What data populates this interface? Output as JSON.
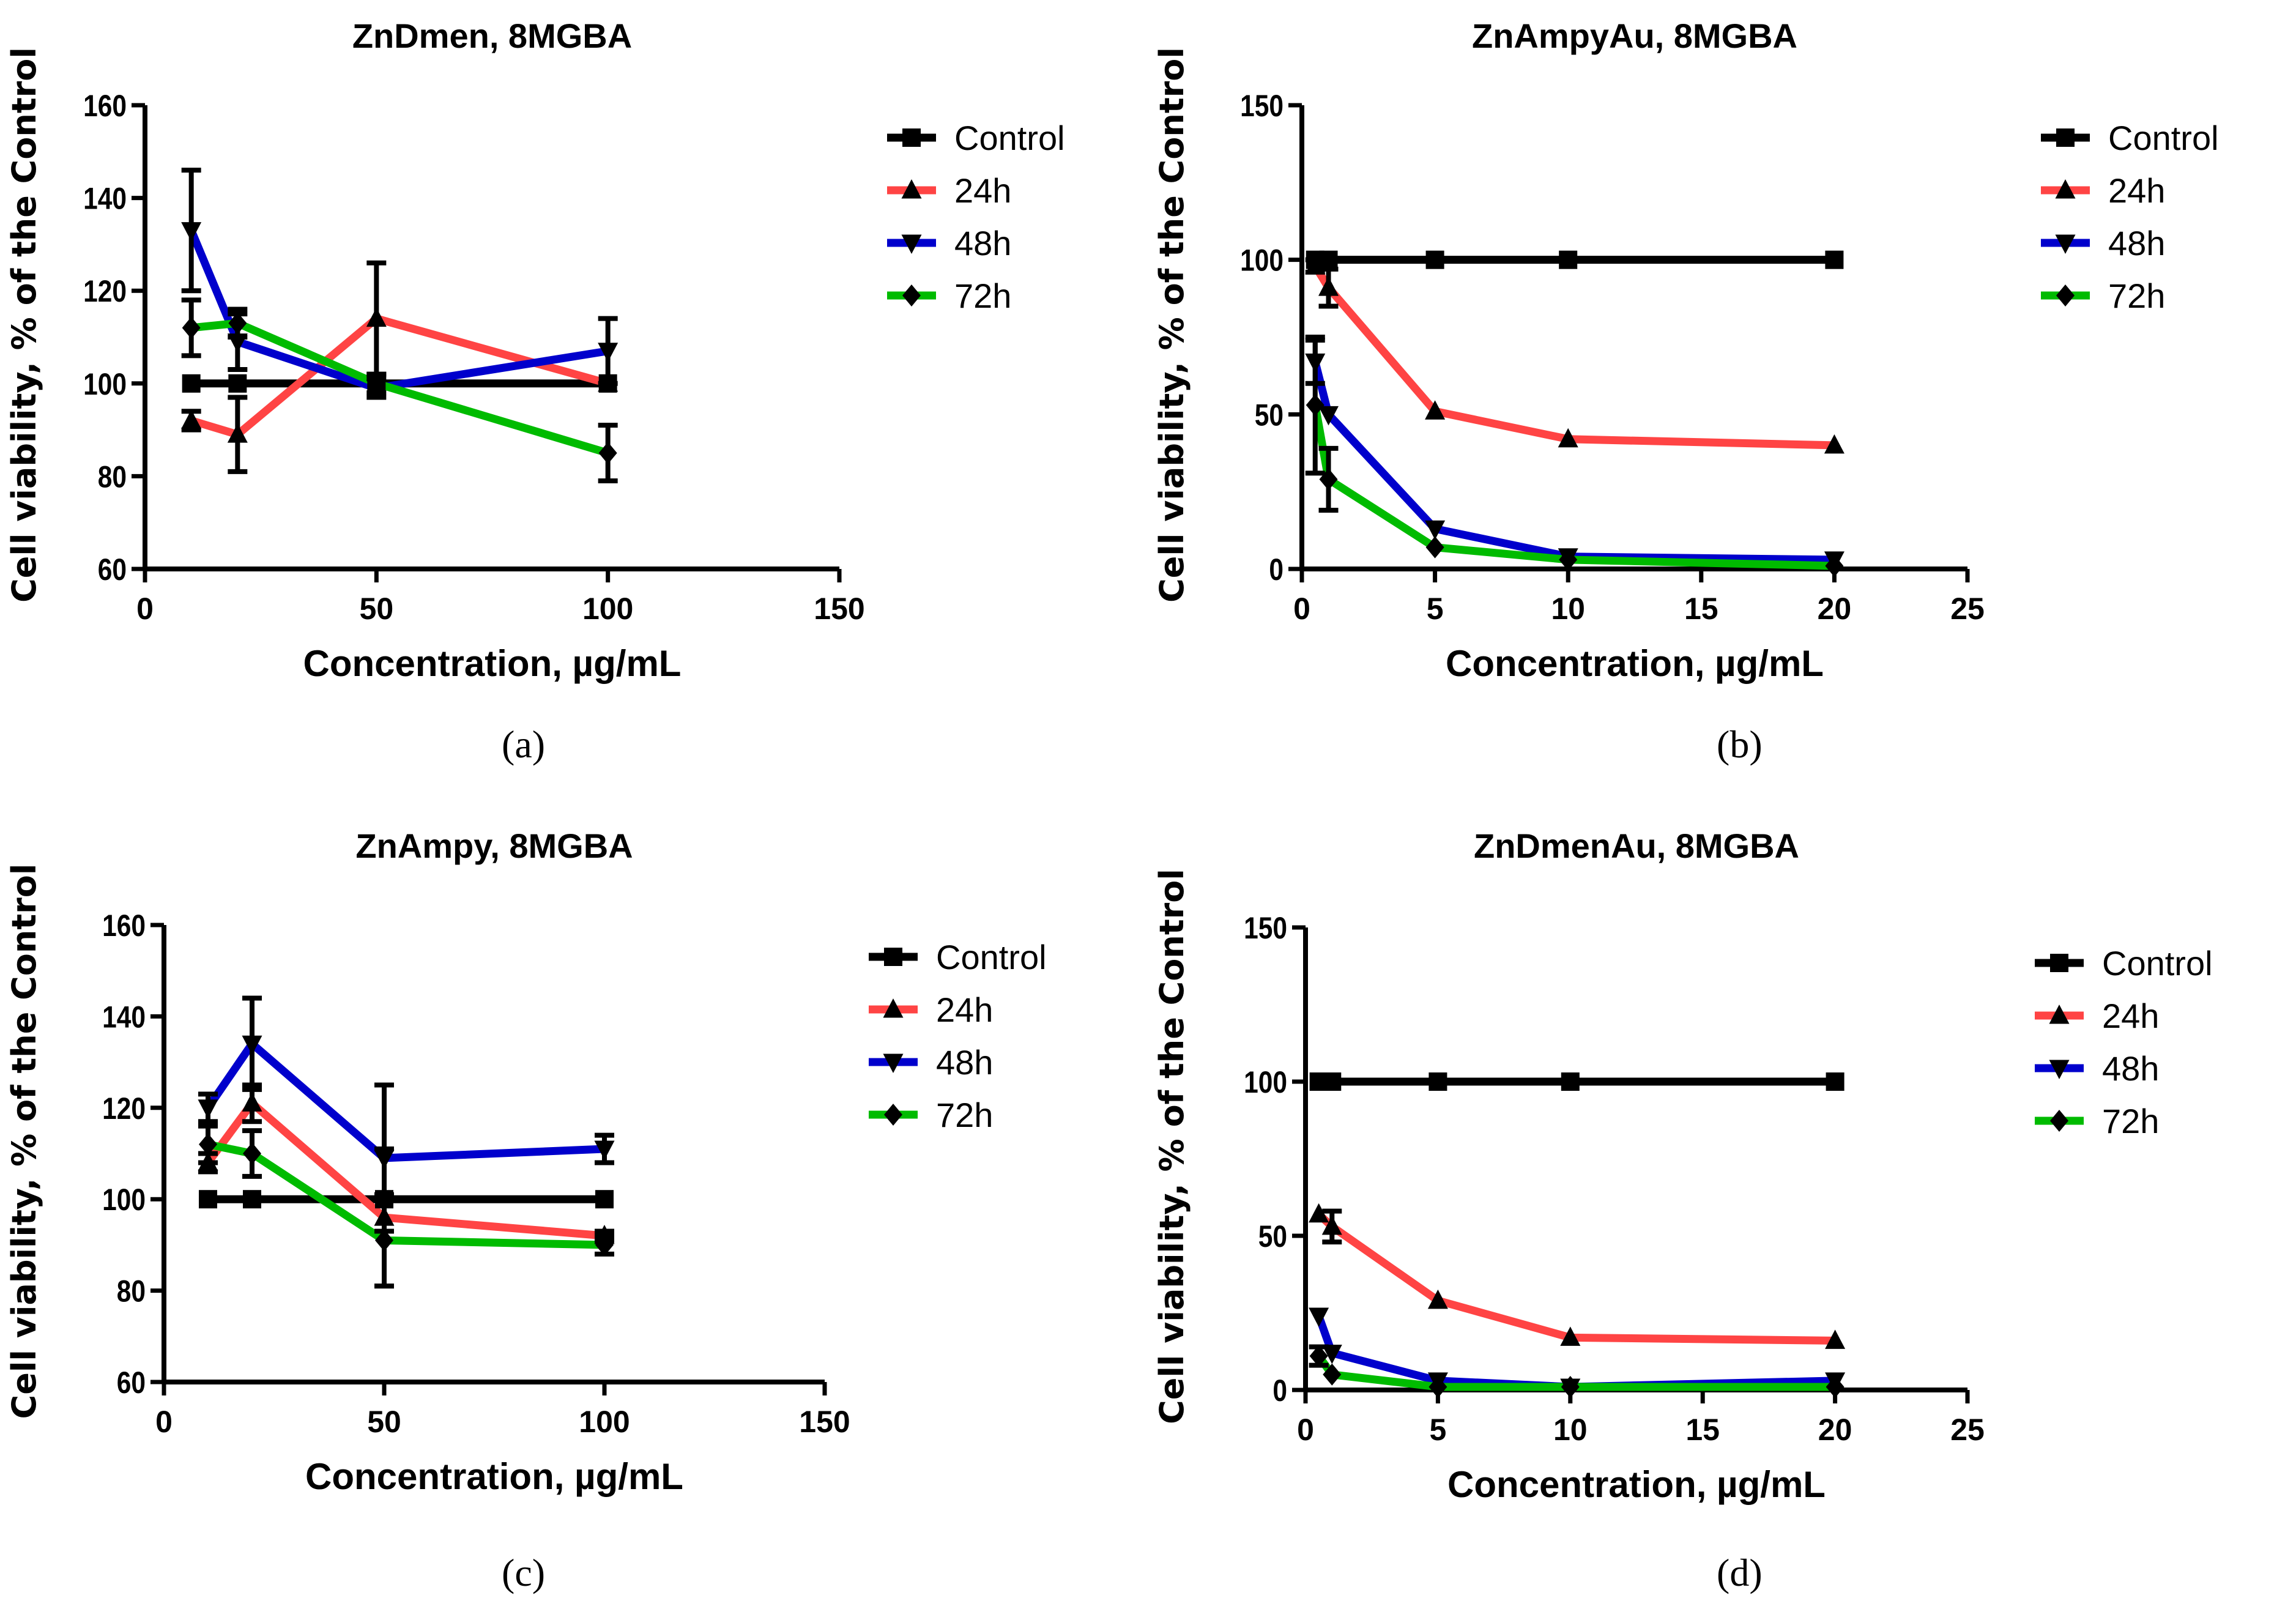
{
  "chart_data": [
    {
      "id": "a",
      "type": "line",
      "caption": "(a)",
      "title": "ZnDmen, 8MGBA",
      "xlabel": "Concentration, µg/mL",
      "ylabel": "Cell viability, % of the Control",
      "xlim": [
        0,
        150
      ],
      "ylim": [
        60,
        160
      ],
      "xticks": [
        0,
        50,
        100,
        150
      ],
      "yticks": [
        60,
        80,
        100,
        120,
        140,
        160
      ],
      "grid": false,
      "legend": "right",
      "x": [
        10,
        20,
        50,
        100
      ],
      "series": [
        {
          "name": "Control",
          "color": "#000000",
          "marker": "square",
          "values": [
            100,
            100,
            100,
            100
          ],
          "err": [
            0,
            0,
            0,
            0
          ]
        },
        {
          "name": "24h",
          "color": "#ff4444",
          "marker": "triangle-up",
          "values": [
            92,
            89,
            114,
            100
          ],
          "err": [
            2,
            8,
            12,
            0
          ]
        },
        {
          "name": "48h",
          "color": "#0000cc",
          "marker": "triangle-down",
          "values": [
            133,
            109,
            99,
            107
          ],
          "err": [
            13,
            6,
            2,
            7
          ]
        },
        {
          "name": "72h",
          "color": "#00bb00",
          "marker": "diamond",
          "values": [
            112,
            113,
            100,
            85
          ],
          "err": [
            6,
            3,
            2,
            6
          ]
        }
      ]
    },
    {
      "id": "b",
      "type": "line",
      "caption": "(b)",
      "title": "ZnAmpyAu, 8MGBA",
      "xlabel": "Concentration, µg/mL",
      "ylabel": "Cell viability, % of the Control",
      "xlim": [
        0,
        25
      ],
      "ylim": [
        0,
        150
      ],
      "xticks": [
        0,
        5,
        10,
        15,
        20,
        25
      ],
      "yticks": [
        0,
        50,
        100,
        150
      ],
      "grid": false,
      "legend": "right",
      "x": [
        0.5,
        1,
        5,
        10,
        20
      ],
      "series": [
        {
          "name": "Control",
          "color": "#000000",
          "marker": "square",
          "values": [
            100,
            100,
            100,
            100,
            100
          ],
          "err": [
            0,
            0,
            0,
            0,
            0
          ]
        },
        {
          "name": "24h",
          "color": "#ff4444",
          "marker": "triangle-up",
          "values": [
            98,
            91,
            51,
            42,
            40
          ],
          "err": [
            2,
            6,
            0,
            0,
            0
          ]
        },
        {
          "name": "48h",
          "color": "#0000cc",
          "marker": "triangle-down",
          "values": [
            67,
            50,
            13,
            4,
            3
          ],
          "err": [
            7,
            0,
            0,
            0,
            0
          ]
        },
        {
          "name": "72h",
          "color": "#00bb00",
          "marker": "diamond",
          "values": [
            53,
            29,
            7,
            3,
            1
          ],
          "err": [
            22,
            10,
            0,
            0,
            0
          ]
        }
      ]
    },
    {
      "id": "c",
      "type": "line",
      "caption": "(c)",
      "title": "ZnAmpy, 8MGBA",
      "xlabel": "Concentration, µg/mL",
      "ylabel": "Cell viability, % of the Control",
      "xlim": [
        0,
        150
      ],
      "ylim": [
        60,
        160
      ],
      "xticks": [
        0,
        50,
        100,
        150
      ],
      "yticks": [
        60,
        80,
        100,
        120,
        140,
        160
      ],
      "grid": false,
      "legend": "right",
      "x": [
        10,
        20,
        50,
        100
      ],
      "series": [
        {
          "name": "Control",
          "color": "#000000",
          "marker": "square",
          "values": [
            100,
            100,
            100,
            100
          ],
          "err": [
            0,
            0,
            0,
            0
          ]
        },
        {
          "name": "24h",
          "color": "#ff4444",
          "marker": "triangle-up",
          "values": [
            108,
            121,
            96,
            92
          ],
          "err": [
            2,
            4,
            15,
            1
          ]
        },
        {
          "name": "48h",
          "color": "#0000cc",
          "marker": "triangle-down",
          "values": [
            120,
            134,
            109,
            111
          ],
          "err": [
            3,
            10,
            16,
            3
          ]
        },
        {
          "name": "72h",
          "color": "#00bb00",
          "marker": "diamond",
          "values": [
            112,
            110,
            91,
            90
          ],
          "err": [
            4,
            5,
            10,
            2
          ]
        }
      ]
    },
    {
      "id": "d",
      "type": "line",
      "caption": "(d)",
      "title": "ZnDmenAu, 8MGBA",
      "xlabel": "Concentration, µg/mL",
      "ylabel": "Cell viability, % of the Control",
      "xlim": [
        0,
        25
      ],
      "ylim": [
        0,
        150
      ],
      "xticks": [
        0,
        5,
        10,
        15,
        20,
        25
      ],
      "yticks": [
        0,
        50,
        100,
        150
      ],
      "grid": false,
      "legend": "right",
      "x": [
        0.5,
        1,
        5,
        10,
        20
      ],
      "series": [
        {
          "name": "Control",
          "color": "#000000",
          "marker": "square",
          "values": [
            100,
            100,
            100,
            100,
            100
          ],
          "err": [
            0,
            0,
            0,
            0,
            0
          ]
        },
        {
          "name": "24h",
          "color": "#ff4444",
          "marker": "triangle-up",
          "values": [
            57,
            53,
            29,
            17,
            16
          ],
          "err": [
            0,
            5,
            0,
            0,
            0
          ]
        },
        {
          "name": "48h",
          "color": "#0000cc",
          "marker": "triangle-down",
          "values": [
            24,
            12,
            3,
            1,
            3
          ],
          "err": [
            0,
            0,
            0,
            0,
            0
          ]
        },
        {
          "name": "72h",
          "color": "#00bb00",
          "marker": "diamond",
          "values": [
            11,
            5,
            1,
            1,
            1
          ],
          "err": [
            3,
            0,
            0,
            0,
            0
          ]
        }
      ]
    }
  ]
}
